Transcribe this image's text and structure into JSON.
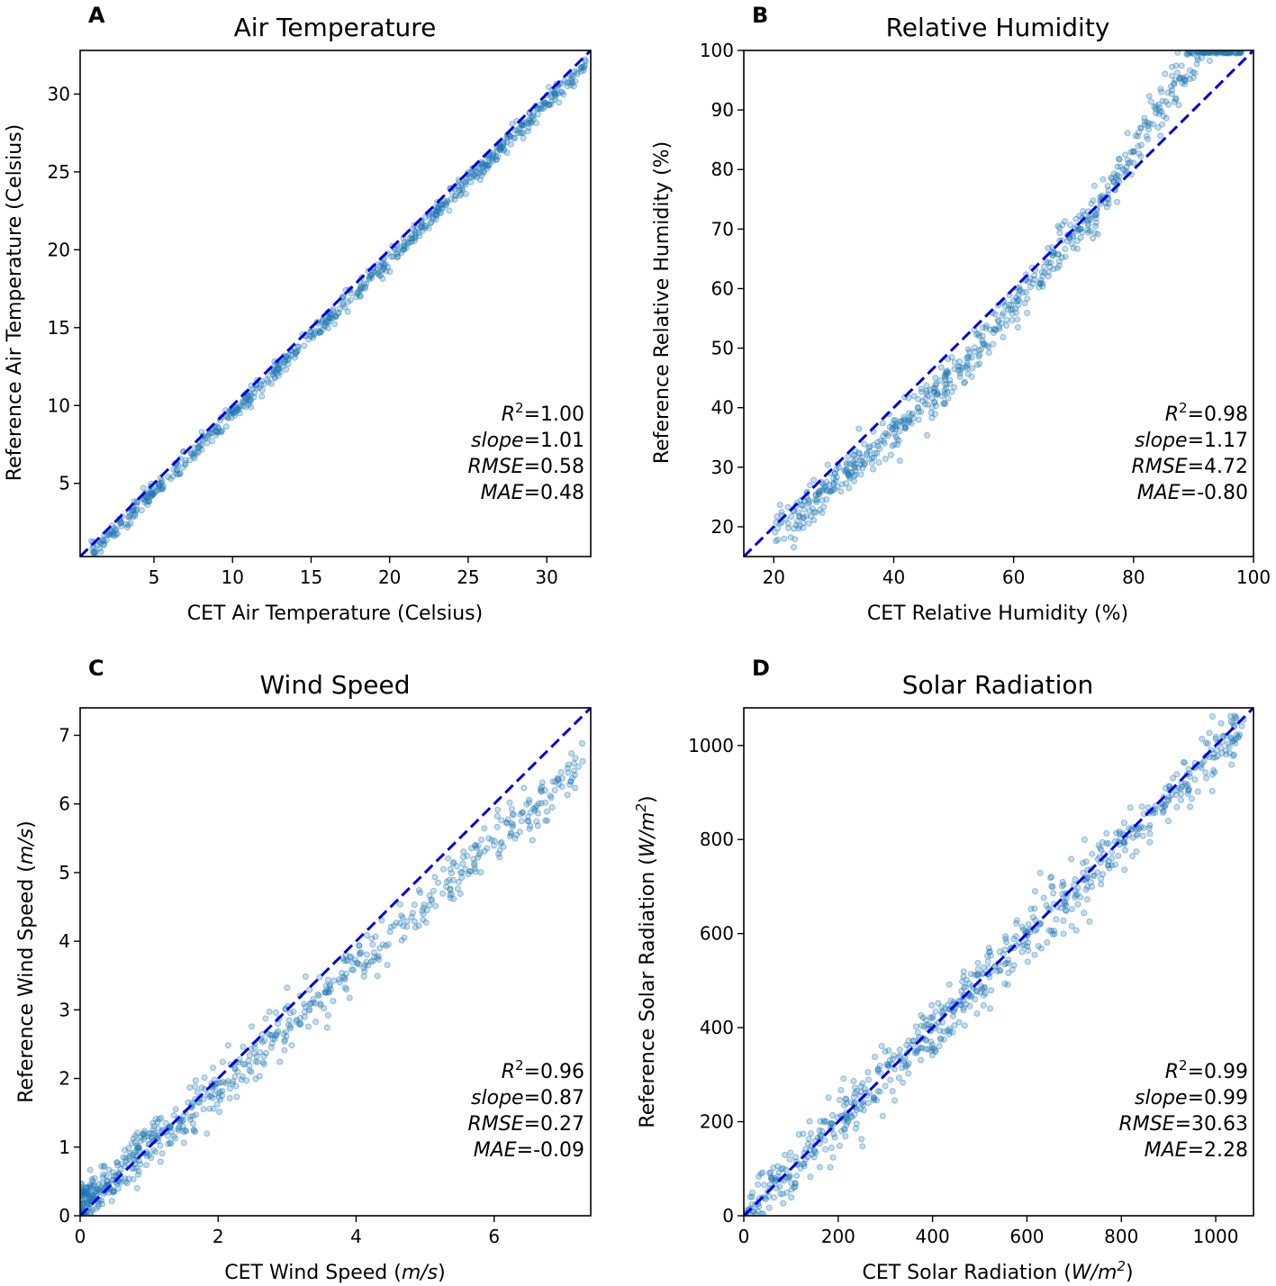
{
  "chart_data": [
    {
      "type": "scatter",
      "panel_label": "A",
      "title": "Air Temperature",
      "xlabel": "CET Air Temperature (Celsius)",
      "ylabel": "Reference Air Temperature (Celsius)",
      "xlim": [
        0.3,
        32.8
      ],
      "ylim": [
        0.3,
        32.8
      ],
      "xticks": [
        "5",
        "10",
        "15",
        "20",
        "25",
        "30"
      ],
      "yticks": [
        "5",
        "10",
        "15",
        "20",
        "25",
        "30"
      ],
      "reference_line": "y = x",
      "stats": {
        "r2": "1.00",
        "slope": "1.01",
        "rmse": "0.58",
        "mae": "0.48"
      },
      "trend": {
        "type": "linear",
        "slope": 1.0,
        "intercept": -0.55,
        "noise_sd": 0.3,
        "x_range": [
          1.0,
          32.5
        ]
      }
    },
    {
      "type": "scatter",
      "panel_label": "B",
      "title": "Relative Humidity",
      "xlabel": "CET Relative Humidity (%)",
      "ylabel": "Reference Relative Humidity (%)",
      "xlim": [
        15,
        100
      ],
      "ylim": [
        15,
        100
      ],
      "xticks": [
        "20",
        "40",
        "60",
        "80",
        "100"
      ],
      "yticks": [
        "20",
        "30",
        "40",
        "50",
        "60",
        "70",
        "80",
        "90",
        "100"
      ],
      "reference_line": "y = x",
      "stats": {
        "r2": "0.98",
        "slope": "1.17",
        "rmse": "4.72",
        "mae": "-0.80"
      },
      "trend": {
        "type": "piecewise",
        "points": [
          [
            20,
            19
          ],
          [
            30,
            27
          ],
          [
            40,
            36
          ],
          [
            50,
            45
          ],
          [
            60,
            57
          ],
          [
            70,
            69
          ],
          [
            75,
            75
          ],
          [
            80,
            83
          ],
          [
            85,
            92
          ],
          [
            90,
            99
          ]
        ],
        "noise_sd": 1.8,
        "x_range": [
          20,
          98
        ],
        "cap": 100
      }
    },
    {
      "type": "scatter",
      "panel_label": "C",
      "title": "Wind Speed",
      "xlabel_parts": [
        "CET Wind Speed (",
        "m/s",
        ")"
      ],
      "ylabel_parts": [
        "Reference Wind Speed (",
        "m/s",
        ")"
      ],
      "xlim": [
        0,
        7.4
      ],
      "ylim": [
        0,
        7.4
      ],
      "xticks": [
        "0",
        "2",
        "4",
        "6"
      ],
      "yticks": [
        "0",
        "1",
        "2",
        "3",
        "4",
        "5",
        "6",
        "7"
      ],
      "reference_line": "y = x",
      "stats": {
        "r2": "0.96",
        "slope": "0.87",
        "rmse": "0.27",
        "mae": "-0.09"
      },
      "trend": {
        "type": "linear",
        "slope": 0.88,
        "intercept": 0.12,
        "noise_sd": 0.18,
        "x_range": [
          0.0,
          7.3
        ]
      }
    },
    {
      "type": "scatter",
      "panel_label": "D",
      "title": "Solar Radiation",
      "xlabel_parts": [
        "CET Solar Radiation (",
        "W/m",
        "2",
        ")"
      ],
      "ylabel_parts": [
        "Reference Solar Radiation (",
        "W/m",
        "2",
        ")"
      ],
      "xlim": [
        0,
        1080
      ],
      "ylim": [
        0,
        1080
      ],
      "xticks": [
        "0",
        "200",
        "400",
        "600",
        "800",
        "1000"
      ],
      "yticks": [
        "0",
        "200",
        "400",
        "600",
        "800",
        "1000"
      ],
      "reference_line": "y = x",
      "stats": {
        "r2": "0.99",
        "slope": "0.99",
        "rmse": "30.63",
        "mae": "2.28"
      },
      "trend": {
        "type": "linear",
        "slope": 0.99,
        "intercept": 0,
        "noise_sd": 30,
        "x_range": [
          0,
          1060
        ]
      }
    }
  ],
  "stat_labels": {
    "r2": "R",
    "slope": "slope",
    "rmse": "RMSE",
    "mae": "MAE"
  },
  "colors": {
    "points": "#1f77b4",
    "reference_line": "#0000dd"
  }
}
